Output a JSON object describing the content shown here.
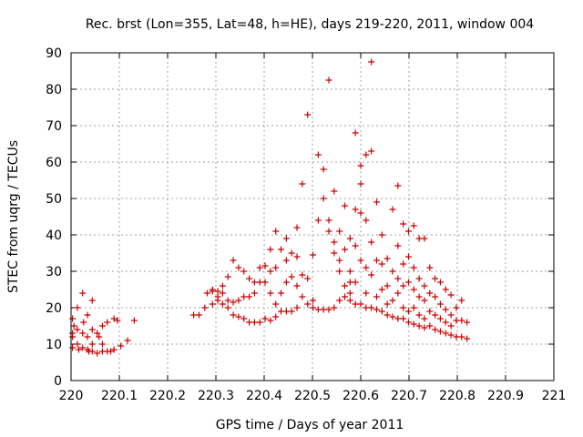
{
  "chart_data": {
    "type": "scatter",
    "title": "Rec. brst (Lon=355, Lat=48, h=HE), days 219-220, 2011, window 004",
    "xlabel": "GPS time / Days of year 2011",
    "ylabel": "STEC from uqrg / TECUs",
    "xlim": [
      220,
      221
    ],
    "ylim": [
      0,
      90
    ],
    "x_ticks": [
      "220",
      "220.1",
      "220.2",
      "220.3",
      "220.4",
      "220.5",
      "220.6",
      "220.7",
      "220.8",
      "220.9",
      "221"
    ],
    "y_ticks": [
      "0",
      "10",
      "20",
      "30",
      "40",
      "50",
      "60",
      "70",
      "80",
      "90"
    ],
    "grid": true,
    "marker": "+",
    "color": "#cc0000",
    "points": [
      [
        220.003,
        17
      ],
      [
        220.003,
        13
      ],
      [
        220.003,
        12
      ],
      [
        220.003,
        9
      ],
      [
        220.013,
        20
      ],
      [
        220.013,
        14
      ],
      [
        220.013,
        10
      ],
      [
        220.024,
        24
      ],
      [
        220.024,
        13
      ],
      [
        220.024,
        9
      ],
      [
        220.034,
        18
      ],
      [
        220.034,
        12
      ],
      [
        220.034,
        8.5
      ],
      [
        220.044,
        22
      ],
      [
        220.044,
        14
      ],
      [
        220.044,
        10
      ],
      [
        220.044,
        8
      ],
      [
        220.054,
        13
      ],
      [
        220.054,
        7.5
      ],
      [
        220.065,
        15
      ],
      [
        220.065,
        10
      ],
      [
        220.065,
        8
      ],
      [
        220.075,
        16
      ],
      [
        220.075,
        8
      ],
      [
        220.089,
        17
      ],
      [
        220.089,
        8.5
      ],
      [
        220.103,
        9.5
      ],
      [
        220.117,
        11
      ],
      [
        220.131,
        16.5
      ],
      [
        220.006,
        15
      ],
      [
        220.016,
        8.5
      ],
      [
        220.026,
        16
      ],
      [
        220.037,
        8
      ],
      [
        220.058,
        12
      ],
      [
        220.082,
        8
      ],
      [
        220.096,
        16.5
      ],
      [
        220.254,
        18
      ],
      [
        220.265,
        18
      ],
      [
        220.277,
        20
      ],
      [
        220.282,
        24
      ],
      [
        220.293,
        25
      ],
      [
        220.293,
        24.5
      ],
      [
        220.293,
        21
      ],
      [
        220.304,
        24.5
      ],
      [
        220.304,
        23
      ],
      [
        220.304,
        22
      ],
      [
        220.314,
        26
      ],
      [
        220.314,
        24
      ],
      [
        220.314,
        21
      ],
      [
        220.325,
        28.5
      ],
      [
        220.325,
        22
      ],
      [
        220.325,
        20
      ],
      [
        220.336,
        33
      ],
      [
        220.336,
        21.5
      ],
      [
        220.336,
        18
      ],
      [
        220.347,
        31
      ],
      [
        220.347,
        22
      ],
      [
        220.347,
        17.5
      ],
      [
        220.358,
        30
      ],
      [
        220.358,
        23
      ],
      [
        220.358,
        17
      ],
      [
        220.369,
        28
      ],
      [
        220.369,
        23
      ],
      [
        220.369,
        16
      ],
      [
        220.38,
        27
      ],
      [
        220.38,
        24
      ],
      [
        220.38,
        16
      ],
      [
        220.391,
        31
      ],
      [
        220.391,
        27
      ],
      [
        220.391,
        16
      ],
      [
        220.402,
        31.5
      ],
      [
        220.402,
        27
      ],
      [
        220.402,
        17
      ],
      [
        220.413,
        36
      ],
      [
        220.413,
        30
      ],
      [
        220.413,
        24
      ],
      [
        220.413,
        16.5
      ],
      [
        220.424,
        41
      ],
      [
        220.424,
        31
      ],
      [
        220.424,
        21
      ],
      [
        220.424,
        17.5
      ],
      [
        220.435,
        36
      ],
      [
        220.435,
        24
      ],
      [
        220.435,
        19
      ],
      [
        220.446,
        39
      ],
      [
        220.446,
        33
      ],
      [
        220.446,
        27
      ],
      [
        220.446,
        19
      ],
      [
        220.457,
        35
      ],
      [
        220.457,
        28.5
      ],
      [
        220.457,
        19
      ],
      [
        220.468,
        42
      ],
      [
        220.468,
        34
      ],
      [
        220.468,
        26
      ],
      [
        220.468,
        20
      ],
      [
        220.479,
        54
      ],
      [
        220.479,
        29
      ],
      [
        220.479,
        23
      ],
      [
        220.49,
        73
      ],
      [
        220.49,
        28
      ],
      [
        220.49,
        21
      ],
      [
        220.501,
        34.5
      ],
      [
        220.501,
        22
      ],
      [
        220.501,
        20
      ],
      [
        220.512,
        62
      ],
      [
        220.512,
        44
      ],
      [
        220.512,
        19.5
      ],
      [
        220.523,
        58
      ],
      [
        220.523,
        50
      ],
      [
        220.523,
        19.5
      ],
      [
        220.534,
        82.5
      ],
      [
        220.534,
        44
      ],
      [
        220.534,
        41
      ],
      [
        220.534,
        19.5
      ],
      [
        220.545,
        52
      ],
      [
        220.545,
        38
      ],
      [
        220.545,
        35
      ],
      [
        220.545,
        20
      ],
      [
        220.556,
        41
      ],
      [
        220.556,
        33
      ],
      [
        220.556,
        30
      ],
      [
        220.556,
        22
      ],
      [
        220.567,
        48
      ],
      [
        220.567,
        36
      ],
      [
        220.567,
        26
      ],
      [
        220.567,
        23
      ],
      [
        220.578,
        39
      ],
      [
        220.578,
        30
      ],
      [
        220.578,
        27
      ],
      [
        220.578,
        22
      ],
      [
        220.578,
        24
      ],
      [
        220.589,
        68
      ],
      [
        220.589,
        47
      ],
      [
        220.589,
        37
      ],
      [
        220.589,
        27
      ],
      [
        220.589,
        21
      ],
      [
        220.6,
        59
      ],
      [
        220.6,
        54
      ],
      [
        220.6,
        46
      ],
      [
        220.6,
        33
      ],
      [
        220.6,
        21
      ],
      [
        220.611,
        62
      ],
      [
        220.611,
        44
      ],
      [
        220.611,
        31
      ],
      [
        220.611,
        24
      ],
      [
        220.611,
        20
      ],
      [
        220.622,
        87.5
      ],
      [
        220.622,
        63
      ],
      [
        220.622,
        38
      ],
      [
        220.622,
        29
      ],
      [
        220.622,
        20
      ],
      [
        220.633,
        49
      ],
      [
        220.633,
        33
      ],
      [
        220.633,
        23
      ],
      [
        220.633,
        19.5
      ],
      [
        220.644,
        40
      ],
      [
        220.644,
        32
      ],
      [
        220.644,
        25
      ],
      [
        220.644,
        19
      ],
      [
        220.655,
        33.5
      ],
      [
        220.655,
        26
      ],
      [
        220.655,
        21
      ],
      [
        220.655,
        18
      ],
      [
        220.666,
        47
      ],
      [
        220.666,
        30
      ],
      [
        220.666,
        22
      ],
      [
        220.666,
        17.5
      ],
      [
        220.677,
        53.5
      ],
      [
        220.677,
        37
      ],
      [
        220.677,
        28
      ],
      [
        220.677,
        24
      ],
      [
        220.677,
        17
      ],
      [
        220.688,
        43
      ],
      [
        220.688,
        32
      ],
      [
        220.688,
        26
      ],
      [
        220.688,
        20
      ],
      [
        220.688,
        17
      ],
      [
        220.699,
        41
      ],
      [
        220.699,
        34
      ],
      [
        220.699,
        27
      ],
      [
        220.699,
        19
      ],
      [
        220.699,
        16
      ],
      [
        220.71,
        42.5
      ],
      [
        220.71,
        31
      ],
      [
        220.71,
        25
      ],
      [
        220.71,
        20
      ],
      [
        220.71,
        15.5
      ],
      [
        220.721,
        39
      ],
      [
        220.721,
        28
      ],
      [
        220.721,
        23
      ],
      [
        220.721,
        18
      ],
      [
        220.721,
        15
      ],
      [
        220.732,
        39
      ],
      [
        220.732,
        26
      ],
      [
        220.732,
        22
      ],
      [
        220.732,
        17
      ],
      [
        220.732,
        14.5
      ],
      [
        220.743,
        31
      ],
      [
        220.743,
        24
      ],
      [
        220.743,
        19
      ],
      [
        220.743,
        15
      ],
      [
        220.754,
        28
      ],
      [
        220.754,
        23
      ],
      [
        220.754,
        18
      ],
      [
        220.754,
        14
      ],
      [
        220.765,
        27
      ],
      [
        220.765,
        21
      ],
      [
        220.765,
        17
      ],
      [
        220.765,
        13.5
      ],
      [
        220.776,
        25
      ],
      [
        220.776,
        19.5
      ],
      [
        220.776,
        16
      ],
      [
        220.776,
        13
      ],
      [
        220.787,
        23.5
      ],
      [
        220.787,
        18
      ],
      [
        220.787,
        15
      ],
      [
        220.787,
        12.5
      ],
      [
        220.798,
        20
      ],
      [
        220.798,
        16.5
      ],
      [
        220.798,
        12
      ],
      [
        220.809,
        22
      ],
      [
        220.809,
        16.5
      ],
      [
        220.809,
        12
      ],
      [
        220.82,
        11.5
      ],
      [
        220.82,
        16
      ]
    ]
  }
}
